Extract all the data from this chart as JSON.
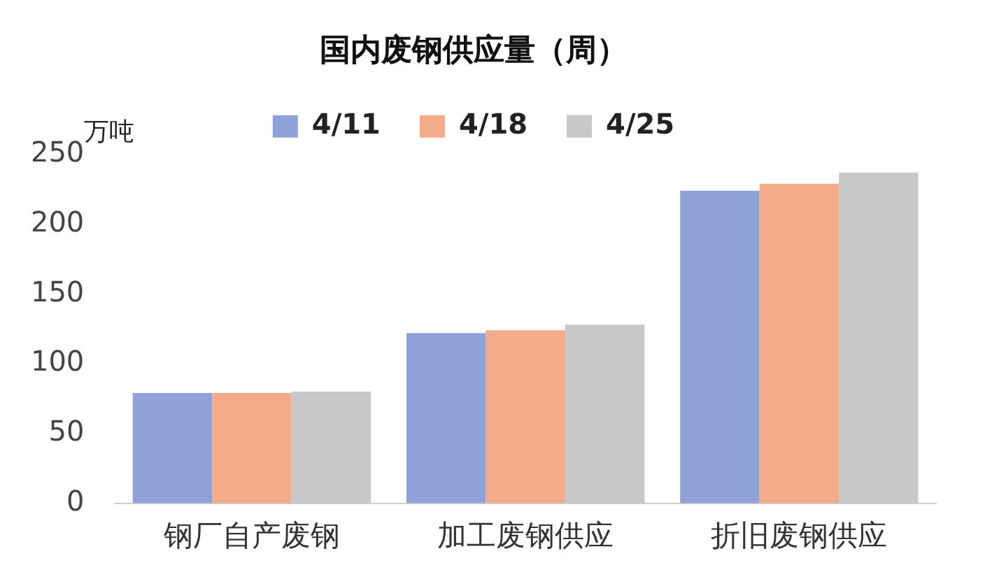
{
  "chart_data": {
    "type": "bar",
    "title": "国内废钢供应量（周）",
    "ylabel": "万吨",
    "categories": [
      "钢厂自产废钢",
      "加工废钢供应",
      "折旧废钢供应"
    ],
    "series": [
      {
        "name": "4/11",
        "color": "#8fa3d8",
        "values": [
          79,
          122,
          224
        ]
      },
      {
        "name": "4/18",
        "color": "#f4ab8a",
        "values": [
          79,
          124,
          229
        ]
      },
      {
        "name": "4/25",
        "color": "#c8c8c8",
        "values": [
          80,
          128,
          237
        ]
      }
    ],
    "ylim": [
      0,
      250
    ],
    "yticks": [
      0,
      50,
      100,
      150,
      200,
      250
    ],
    "grid": false,
    "legend": "top"
  }
}
